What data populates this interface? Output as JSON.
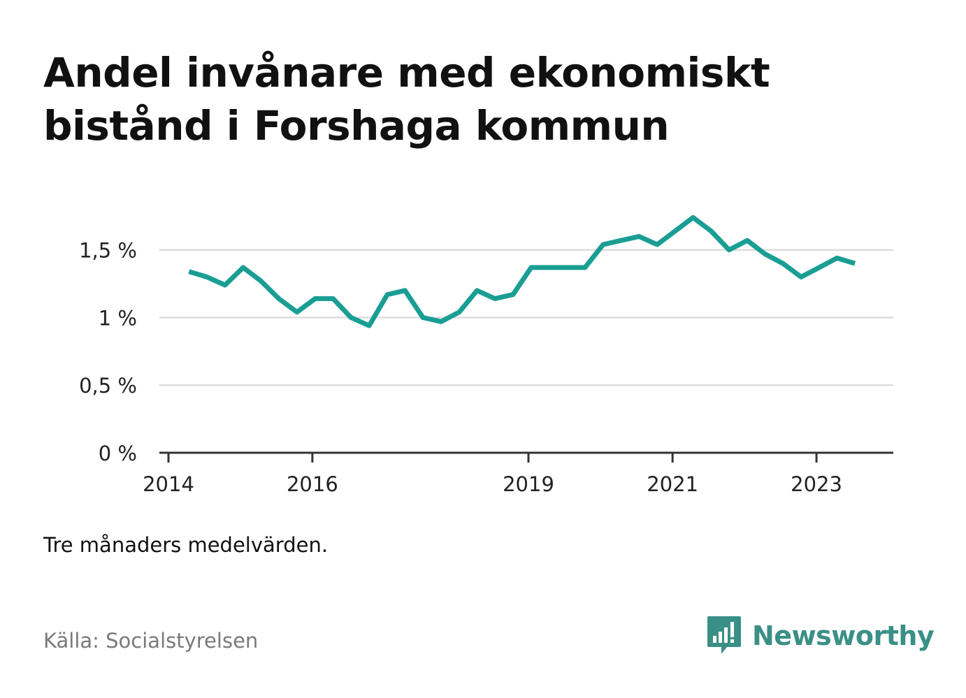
{
  "title": "Andel invånare med ekonomiskt bistånd i Forshaga kommun",
  "note": "Tre månaders medelvärden.",
  "source": "Källa: Socialstyrelsen",
  "brand": {
    "name": "Newsworthy",
    "icon": "newsworthy-logo-icon",
    "color": "#3a8f86"
  },
  "colors": {
    "line": "#1a9e94",
    "grid": "#dddddd",
    "axis": "#333333"
  },
  "chart_data": {
    "type": "line",
    "title": "Andel invånare med ekonomiskt bistånd i Forshaga kommun",
    "xlabel": "",
    "ylabel": "",
    "grid": true,
    "legend": "none",
    "ylim": [
      0,
      1.85
    ],
    "xlim": [
      "2014-01-01",
      "2024-01-01"
    ],
    "y_ticks": [
      {
        "value": 0,
        "label": "0 %"
      },
      {
        "value": 0.5,
        "label": "0,5 %"
      },
      {
        "value": 1,
        "label": "1 %"
      },
      {
        "value": 1.5,
        "label": "1,5 %"
      }
    ],
    "x_ticks": [
      {
        "value": "2014-01-01",
        "label": "2014"
      },
      {
        "value": "2016-01-01",
        "label": "2016"
      },
      {
        "value": "2019-01-01",
        "label": "2019"
      },
      {
        "value": "2021-01-01",
        "label": "2021"
      },
      {
        "value": "2023-01-01",
        "label": "2023"
      }
    ],
    "series": [
      {
        "x": [
          "2014-04-15",
          "2014-07-15",
          "2014-10-15",
          "2015-01-15",
          "2015-04-15",
          "2015-07-15",
          "2015-10-15",
          "2016-01-15",
          "2016-04-15",
          "2016-07-15",
          "2016-10-15",
          "2017-01-15",
          "2017-04-15",
          "2017-07-15",
          "2017-10-15",
          "2018-01-15",
          "2018-04-15",
          "2018-07-15",
          "2018-10-15",
          "2019-01-15",
          "2019-04-15",
          "2019-07-15",
          "2019-10-15",
          "2020-01-15",
          "2020-04-15",
          "2020-07-15",
          "2020-10-15",
          "2021-01-15",
          "2021-04-15",
          "2021-07-15",
          "2021-10-15",
          "2022-01-15",
          "2022-04-15",
          "2022-07-15",
          "2022-10-15",
          "2023-01-15",
          "2023-04-15",
          "2023-07-15"
        ],
        "values": [
          1.34,
          1.3,
          1.24,
          1.37,
          1.27,
          1.14,
          1.04,
          1.14,
          1.14,
          1.0,
          0.94,
          1.17,
          1.2,
          1.0,
          0.97,
          1.04,
          1.2,
          1.14,
          1.17,
          1.37,
          1.37,
          1.37,
          1.37,
          1.54,
          1.57,
          1.6,
          1.54,
          1.64,
          1.74,
          1.64,
          1.5,
          1.57,
          1.47,
          1.4,
          1.3,
          1.37,
          1.44,
          1.4
        ]
      }
    ]
  }
}
